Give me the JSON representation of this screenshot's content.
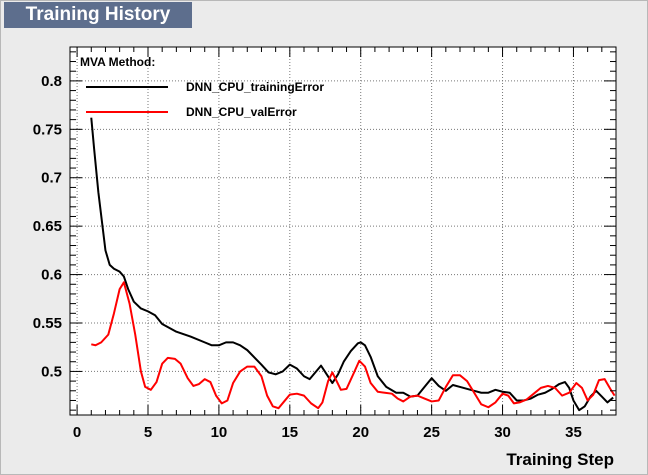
{
  "header": {
    "title": "Training History"
  },
  "chart_data": {
    "type": "line",
    "title": "Training History",
    "xlabel": "Training Step",
    "ylabel": "",
    "xlim": [
      -0.5,
      38
    ],
    "ylim": [
      0.455,
      0.835
    ],
    "xticks": [
      0,
      5,
      10,
      15,
      20,
      25,
      30,
      35
    ],
    "xtick_labels": [
      "0",
      "5",
      "10",
      "15",
      "20",
      "25",
      "30",
      "35"
    ],
    "yticks": [
      0.5,
      0.55,
      0.6,
      0.65,
      0.7,
      0.75,
      0.8
    ],
    "ytick_labels": [
      "0.5",
      "0.55",
      "0.6",
      "0.65",
      "0.7",
      "0.75",
      "0.8"
    ],
    "grid": true,
    "legend": {
      "header": "MVA Method:",
      "placement": "top-left"
    },
    "colors": {
      "train": "#000000",
      "val": "#ff0000",
      "background": "#ebebeb",
      "plot": "#ffffff"
    },
    "series": [
      {
        "name": "DNN_CPU_trainingError",
        "color": "#000000",
        "points": [
          [
            1.0,
            0.762
          ],
          [
            1.2,
            0.73
          ],
          [
            1.5,
            0.685
          ],
          [
            2.0,
            0.625
          ],
          [
            2.3,
            0.61
          ],
          [
            2.6,
            0.606
          ],
          [
            3.0,
            0.603
          ],
          [
            3.3,
            0.598
          ],
          [
            3.6,
            0.585
          ],
          [
            4.0,
            0.572
          ],
          [
            4.5,
            0.565
          ],
          [
            5.0,
            0.562
          ],
          [
            5.5,
            0.558
          ],
          [
            6.0,
            0.549
          ],
          [
            7.0,
            0.541
          ],
          [
            8.0,
            0.536
          ],
          [
            9.0,
            0.53
          ],
          [
            9.5,
            0.527
          ],
          [
            10.0,
            0.527
          ],
          [
            10.5,
            0.53
          ],
          [
            11.0,
            0.53
          ],
          [
            11.5,
            0.527
          ],
          [
            12.0,
            0.522
          ],
          [
            13.0,
            0.507
          ],
          [
            13.5,
            0.499
          ],
          [
            14.0,
            0.497
          ],
          [
            14.5,
            0.5
          ],
          [
            15.0,
            0.507
          ],
          [
            15.5,
            0.503
          ],
          [
            16.0,
            0.495
          ],
          [
            16.4,
            0.492
          ],
          [
            16.8,
            0.499
          ],
          [
            17.2,
            0.506
          ],
          [
            17.6,
            0.497
          ],
          [
            18.0,
            0.488
          ],
          [
            18.4,
            0.497
          ],
          [
            18.8,
            0.51
          ],
          [
            19.3,
            0.521
          ],
          [
            19.8,
            0.529
          ],
          [
            20.0,
            0.53
          ],
          [
            20.3,
            0.527
          ],
          [
            20.7,
            0.515
          ],
          [
            21.2,
            0.495
          ],
          [
            21.8,
            0.484
          ],
          [
            22.5,
            0.478
          ],
          [
            23.0,
            0.478
          ],
          [
            23.5,
            0.474
          ],
          [
            24.0,
            0.475
          ],
          [
            24.5,
            0.484
          ],
          [
            25.0,
            0.493
          ],
          [
            25.5,
            0.485
          ],
          [
            26.0,
            0.48
          ],
          [
            26.5,
            0.486
          ],
          [
            27.0,
            0.484
          ],
          [
            28.0,
            0.48
          ],
          [
            28.5,
            0.478
          ],
          [
            29.0,
            0.478
          ],
          [
            29.5,
            0.481
          ],
          [
            30.0,
            0.479
          ],
          [
            30.5,
            0.478
          ],
          [
            31.0,
            0.47
          ],
          [
            31.5,
            0.47
          ],
          [
            32.0,
            0.472
          ],
          [
            32.5,
            0.476
          ],
          [
            33.0,
            0.478
          ],
          [
            33.5,
            0.482
          ],
          [
            34.0,
            0.487
          ],
          [
            34.4,
            0.489
          ],
          [
            34.7,
            0.483
          ],
          [
            35.0,
            0.47
          ],
          [
            35.4,
            0.46
          ],
          [
            35.8,
            0.464
          ],
          [
            36.2,
            0.474
          ],
          [
            36.6,
            0.48
          ],
          [
            37.0,
            0.474
          ],
          [
            37.4,
            0.468
          ],
          [
            37.8,
            0.473
          ]
        ]
      },
      {
        "name": "DNN_CPU_valError",
        "color": "#ff0000",
        "points": [
          [
            1.0,
            0.528
          ],
          [
            1.3,
            0.527
          ],
          [
            1.7,
            0.53
          ],
          [
            2.2,
            0.538
          ],
          [
            2.6,
            0.56
          ],
          [
            3.0,
            0.585
          ],
          [
            3.3,
            0.592
          ],
          [
            3.7,
            0.57
          ],
          [
            4.1,
            0.538
          ],
          [
            4.5,
            0.5
          ],
          [
            4.8,
            0.484
          ],
          [
            5.2,
            0.481
          ],
          [
            5.6,
            0.489
          ],
          [
            6.0,
            0.508
          ],
          [
            6.4,
            0.514
          ],
          [
            6.9,
            0.513
          ],
          [
            7.3,
            0.508
          ],
          [
            7.8,
            0.493
          ],
          [
            8.2,
            0.485
          ],
          [
            8.6,
            0.487
          ],
          [
            9.0,
            0.492
          ],
          [
            9.4,
            0.489
          ],
          [
            9.8,
            0.475
          ],
          [
            10.2,
            0.467
          ],
          [
            10.6,
            0.47
          ],
          [
            11.0,
            0.488
          ],
          [
            11.5,
            0.5
          ],
          [
            12.0,
            0.505
          ],
          [
            12.5,
            0.505
          ],
          [
            13.0,
            0.495
          ],
          [
            13.4,
            0.475
          ],
          [
            13.8,
            0.464
          ],
          [
            14.2,
            0.462
          ],
          [
            14.6,
            0.469
          ],
          [
            15.0,
            0.476
          ],
          [
            15.5,
            0.477
          ],
          [
            16.0,
            0.475
          ],
          [
            16.5,
            0.467
          ],
          [
            17.0,
            0.462
          ],
          [
            17.3,
            0.468
          ],
          [
            17.7,
            0.49
          ],
          [
            18.0,
            0.499
          ],
          [
            18.3,
            0.49
          ],
          [
            18.6,
            0.481
          ],
          [
            19.0,
            0.482
          ],
          [
            19.5,
            0.498
          ],
          [
            19.9,
            0.511
          ],
          [
            20.3,
            0.505
          ],
          [
            20.7,
            0.488
          ],
          [
            21.2,
            0.479
          ],
          [
            21.7,
            0.478
          ],
          [
            22.2,
            0.477
          ],
          [
            22.6,
            0.472
          ],
          [
            23.0,
            0.469
          ],
          [
            23.5,
            0.474
          ],
          [
            24.0,
            0.475
          ],
          [
            24.5,
            0.472
          ],
          [
            25.0,
            0.469
          ],
          [
            25.5,
            0.47
          ],
          [
            26.0,
            0.484
          ],
          [
            26.5,
            0.496
          ],
          [
            27.0,
            0.496
          ],
          [
            27.5,
            0.49
          ],
          [
            28.0,
            0.478
          ],
          [
            28.5,
            0.466
          ],
          [
            29.0,
            0.463
          ],
          [
            29.5,
            0.468
          ],
          [
            30.0,
            0.477
          ],
          [
            30.4,
            0.475
          ],
          [
            30.8,
            0.467
          ],
          [
            31.2,
            0.468
          ],
          [
            31.7,
            0.471
          ],
          [
            32.2,
            0.477
          ],
          [
            32.7,
            0.483
          ],
          [
            33.2,
            0.485
          ],
          [
            33.7,
            0.483
          ],
          [
            34.2,
            0.475
          ],
          [
            34.7,
            0.478
          ],
          [
            35.2,
            0.488
          ],
          [
            35.6,
            0.483
          ],
          [
            36.0,
            0.47
          ],
          [
            36.4,
            0.476
          ],
          [
            36.8,
            0.491
          ],
          [
            37.2,
            0.492
          ],
          [
            37.6,
            0.482
          ],
          [
            37.9,
            0.475
          ]
        ]
      }
    ]
  }
}
